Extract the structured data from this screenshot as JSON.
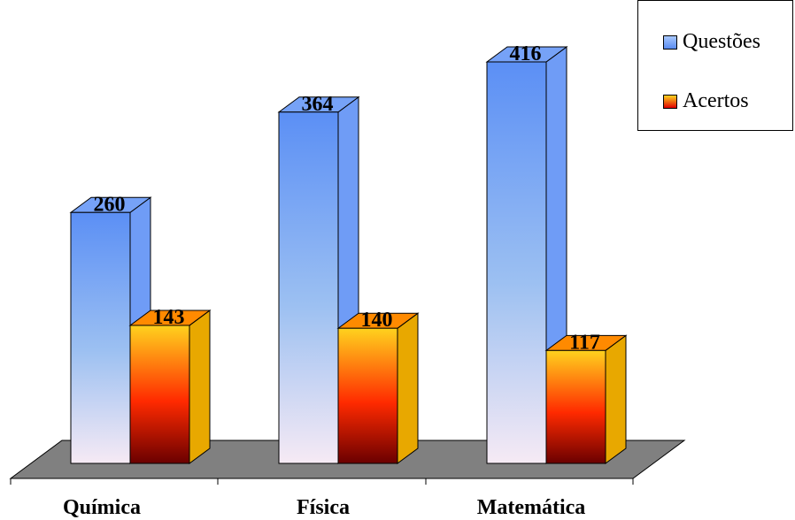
{
  "chart_data": {
    "type": "bar",
    "categories": [
      "Química",
      "Física",
      "Matemática"
    ],
    "series": [
      {
        "name": "Questões",
        "values": [
          260,
          364,
          416
        ]
      },
      {
        "name": "Acertos",
        "values": [
          143,
          140,
          117
        ]
      }
    ],
    "ylim": [
      0,
      416
    ],
    "grid": false,
    "legend": "top-right",
    "three_d": true,
    "colors": {
      "questoes_top": "#5b8ff5",
      "questoes_bottom": "#f6eaf4",
      "acertos_top": "#ffd21e",
      "acertos_mid": "#ff2a00",
      "acertos_bottom": "#6a0000",
      "floor": "#808080"
    }
  }
}
